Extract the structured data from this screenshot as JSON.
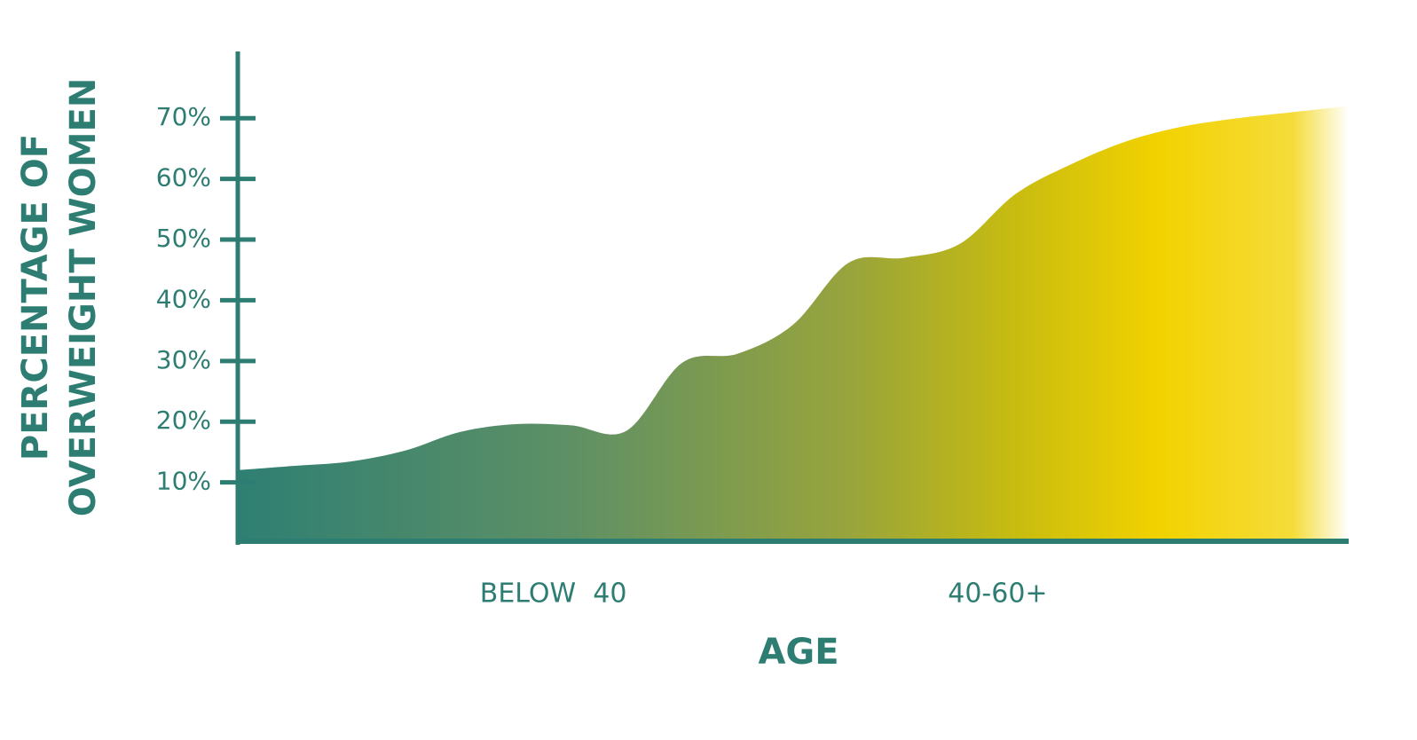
{
  "chart_data": {
    "type": "area",
    "ylabel": [
      "PERCENTAGE OF",
      "OVERWEIGHT WOMEN"
    ],
    "xlabel": "AGE",
    "categories": [
      null,
      null,
      null,
      null,
      null,
      null,
      "BELOW  40",
      null,
      null,
      null,
      null,
      null,
      null,
      null,
      "40-60+",
      null,
      null,
      null,
      null,
      null,
      null
    ],
    "values": [
      12,
      12.7,
      13.4,
      15.2,
      18.3,
      19.6,
      19.4,
      18.5,
      29.7,
      31.2,
      36,
      46.2,
      47,
      49.3,
      57.5,
      62.4,
      66.2,
      68.6,
      70,
      71,
      72
    ],
    "colors": [
      "#2f7f73",
      "#5e9065",
      "#98a43c",
      "#c8bc10",
      "#f2d200",
      "#f5dc3a",
      "#ffffff"
    ],
    "axis_color": "#2e7d72",
    "ylim": [
      0,
      81
    ],
    "yticks": [
      {
        "value": 10,
        "label": "10%"
      },
      {
        "value": 20,
        "label": "20%"
      },
      {
        "value": 30,
        "label": "30%"
      },
      {
        "value": 40,
        "label": "40%"
      },
      {
        "value": 50,
        "label": "50%"
      },
      {
        "value": 60,
        "label": "60%"
      },
      {
        "value": 70,
        "label": "70%"
      }
    ]
  }
}
